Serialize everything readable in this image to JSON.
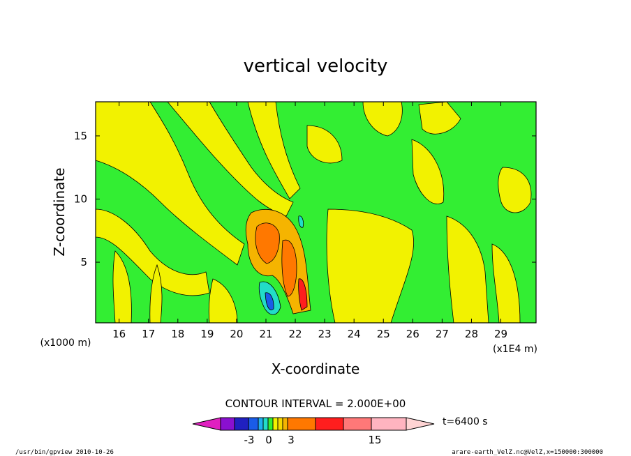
{
  "chart_data": {
    "type": "heatmap",
    "title": "vertical velocity",
    "xlabel": "X-coordinate",
    "ylabel": "Z-coordinate",
    "x_unit_label": "(x1E4 m)",
    "y_unit_label": "(x1000 m)",
    "xlim": [
      15.2,
      30.2
    ],
    "ylim": [
      0.2,
      17.7
    ],
    "x_ticks": [
      "16",
      "17",
      "18",
      "19",
      "20",
      "21",
      "22",
      "23",
      "24",
      "25",
      "26",
      "27",
      "28",
      "29"
    ],
    "y_ticks": [
      "5",
      "10",
      "15"
    ],
    "contour_interval_label": "CONTOUR INTERVAL = 2.000E+00",
    "colorbar": {
      "time_label": "t=6400 s",
      "tick_labels": [
        "-3",
        "0",
        "3",
        "15"
      ],
      "colors": [
        "#e020c0",
        "#8a10d0",
        "#2020c0",
        "#1a5ce8",
        "#20b0f0",
        "#22dcc8",
        "#33ee33",
        "#f2f200",
        "#f5d800",
        "#f5b400",
        "#ff7800",
        "#ff1e1e",
        "#ff7878",
        "#ffb4c0",
        "#ffd4d4"
      ]
    },
    "field": {
      "background_value": "0 (green)",
      "features": [
        {
          "x": 20.7,
          "z": 7.0,
          "value": "positive (orange)"
        },
        {
          "x": 21.5,
          "z": 5.0,
          "value": "positive (orange)"
        },
        {
          "x": 21.0,
          "z": 2.0,
          "value": "negative (blue)"
        },
        {
          "x": 22.0,
          "z": 3.0,
          "value": "positive (red)"
        }
      ]
    }
  },
  "footer": {
    "left": "/usr/bin/gpview   2010-10-26",
    "right": "arare-earth_VelZ.nc@VelZ,x=150000:300000"
  }
}
